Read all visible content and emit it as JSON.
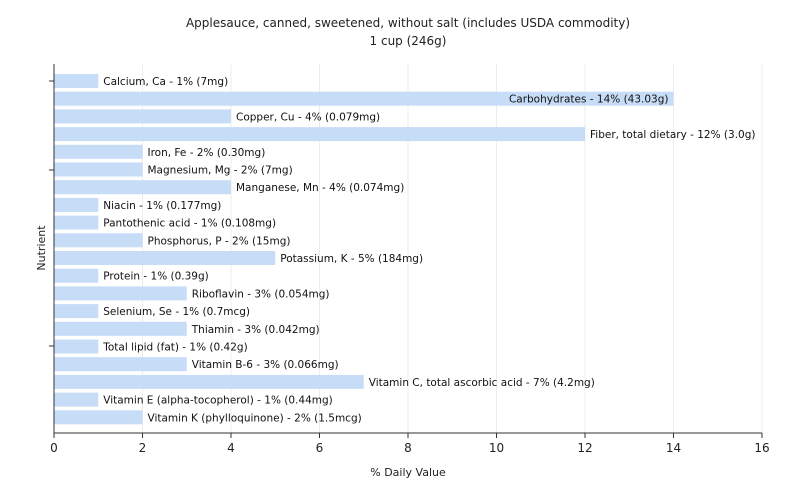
{
  "chart_data": {
    "type": "bar",
    "orientation": "horizontal",
    "title": "Applesauce, canned, sweetened, without salt (includes USDA commodity)",
    "subtitle": "1 cup (246g)",
    "xlabel": "% Daily Value",
    "ylabel": "Nutrient",
    "xlim": [
      0,
      16
    ],
    "xticks": [
      "0",
      "2",
      "4",
      "6",
      "8",
      "10",
      "12",
      "14",
      "16"
    ],
    "grid": true,
    "bar_color": "#c6dcf7",
    "categories": [
      "Calcium, Ca",
      "Carbohydrates",
      "Copper, Cu",
      "Fiber, total dietary",
      "Iron, Fe",
      "Magnesium, Mg",
      "Manganese, Mn",
      "Niacin",
      "Pantothenic acid",
      "Phosphorus, P",
      "Potassium, K",
      "Protein",
      "Riboflavin",
      "Selenium, Se",
      "Thiamin",
      "Total lipid (fat)",
      "Vitamin B-6",
      "Vitamin C, total ascorbic acid",
      "Vitamin E (alpha-tocopherol)",
      "Vitamin K (phylloquinone)"
    ],
    "values": [
      1,
      14,
      4,
      12,
      2,
      2,
      4,
      1,
      1,
      2,
      5,
      1,
      3,
      1,
      3,
      1,
      3,
      7,
      1,
      2
    ],
    "labels": [
      "Calcium, Ca - 1% (7mg)",
      "Carbohydrates - 14% (43.03g)",
      "Copper, Cu - 4% (0.079mg)",
      "Fiber, total dietary - 12% (3.0g)",
      "Iron, Fe - 2% (0.30mg)",
      "Magnesium, Mg - 2% (7mg)",
      "Manganese, Mn - 4% (0.074mg)",
      "Niacin - 1% (0.177mg)",
      "Pantothenic acid - 1% (0.108mg)",
      "Phosphorus, P - 2% (15mg)",
      "Potassium, K - 5% (184mg)",
      "Protein - 1% (0.39g)",
      "Riboflavin - 3% (0.054mg)",
      "Selenium, Se - 1% (0.7mcg)",
      "Thiamin - 3% (0.042mg)",
      "Total lipid (fat) - 1% (0.42g)",
      "Vitamin B-6 - 3% (0.066mg)",
      "Vitamin C, total ascorbic acid - 7% (4.2mg)",
      "Vitamin E (alpha-tocopherol) - 1% (0.44mg)",
      "Vitamin K (phylloquinone) - 2% (1.5mcg)"
    ]
  }
}
